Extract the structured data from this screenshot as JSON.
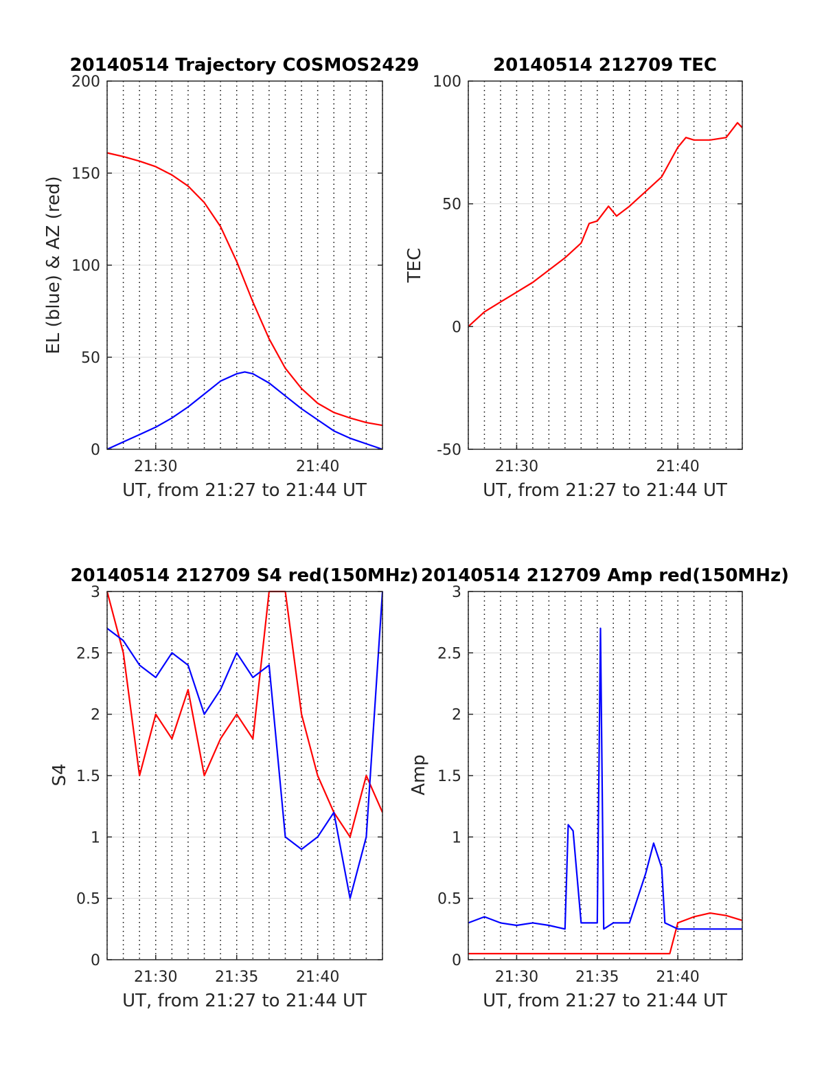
{
  "colors": {
    "red": "#ff0000",
    "blue": "#0000ff",
    "grid": "#d9d9d9",
    "axis": "#262626"
  },
  "chart_data": [
    {
      "type": "line",
      "title": "20140514 Trajectory COSMOS2429",
      "xlabel": "UT, from 21:27 to 21:44 UT",
      "ylabel": "EL (blue) & AZ (red)",
      "x_range_minutes": [
        "21:27",
        "21:44"
      ],
      "ylim": [
        0,
        200
      ],
      "yticks": [
        "0",
        "50",
        "100",
        "150",
        "200"
      ],
      "xticks": [
        {
          "t": "21:30",
          "label": "21:30"
        },
        {
          "t": "21:40",
          "label": "21:40"
        }
      ],
      "minor_grid": "dotted vertical every minute",
      "grid": true,
      "series": [
        {
          "color": "red",
          "x": [
            "21:27",
            "21:28",
            "21:29",
            "21:30",
            "21:31",
            "21:32",
            "21:33",
            "21:34",
            "21:35",
            "21:35.5",
            "21:36",
            "21:37",
            "21:38",
            "21:39",
            "21:40",
            "21:41",
            "21:42",
            "21:43",
            "21:44"
          ],
          "y": [
            161,
            159,
            156.5,
            153.5,
            149,
            143,
            134,
            121,
            102,
            91,
            80,
            60,
            44,
            33,
            25,
            20,
            17,
            14.5,
            13
          ]
        },
        {
          "color": "blue",
          "x": [
            "21:27",
            "21:28",
            "21:29",
            "21:30",
            "21:31",
            "21:32",
            "21:33",
            "21:34",
            "21:35",
            "21:35.5",
            "21:36",
            "21:37",
            "21:38",
            "21:39",
            "21:40",
            "21:41",
            "21:42",
            "21:43",
            "21:44"
          ],
          "y": [
            0,
            4,
            8,
            12,
            17,
            23,
            30,
            37,
            41,
            42,
            41,
            36,
            29,
            22,
            16,
            10,
            6,
            3,
            0
          ]
        }
      ]
    },
    {
      "type": "line",
      "title": "20140514 212709 TEC",
      "xlabel": "UT, from 21:27 to 21:44 UT",
      "ylabel": "TEC",
      "x_range_minutes": [
        "21:27",
        "21:44"
      ],
      "ylim": [
        -50,
        100
      ],
      "yticks": [
        "-50",
        "0",
        "50",
        "100"
      ],
      "xticks": [
        {
          "t": "21:30",
          "label": "21:30"
        },
        {
          "t": "21:40",
          "label": "21:40"
        }
      ],
      "minor_grid": "dotted vertical every minute",
      "grid": true,
      "series": [
        {
          "color": "red",
          "x": [
            "21:27",
            "21:28",
            "21:29",
            "21:30",
            "21:31",
            "21:32",
            "21:33",
            "21:34",
            "21:34.5",
            "21:35",
            "21:35.7",
            "21:36.2",
            "21:37",
            "21:38",
            "21:39",
            "21:40",
            "21:40.5",
            "21:41",
            "21:42",
            "21:43",
            "21:43.7",
            "21:44"
          ],
          "y": [
            0,
            6,
            10,
            14,
            18,
            23,
            28,
            34,
            42,
            43,
            49,
            45,
            49,
            55,
            61,
            73,
            77,
            76,
            76,
            77,
            83,
            81
          ]
        }
      ]
    },
    {
      "type": "line",
      "title": "20140514 212709 S4 red(150MHz)",
      "xlabel": "UT, from 21:27 to 21:44 UT",
      "ylabel": "S4",
      "x_range_minutes": [
        "21:27",
        "21:44"
      ],
      "ylim": [
        0,
        3
      ],
      "yticks": [
        "0",
        "0.5",
        "1",
        "1.5",
        "2",
        "2.5",
        "3"
      ],
      "xticks": [
        {
          "t": "21:30",
          "label": "21:30"
        },
        {
          "t": "21:35",
          "label": "21:35"
        },
        {
          "t": "21:40",
          "label": "21:40"
        }
      ],
      "minor_grid": "dotted vertical every minute",
      "grid": true,
      "series": [
        {
          "color": "red",
          "x": [
            "21:27",
            "21:28",
            "21:29",
            "21:30",
            "21:31",
            "21:32",
            "21:33",
            "21:34",
            "21:35",
            "21:36",
            "21:37",
            "21:38",
            "21:39",
            "21:40",
            "21:41",
            "21:42",
            "21:43",
            "21:44"
          ],
          "y": [
            3,
            2.5,
            1.5,
            2.0,
            1.8,
            2.2,
            1.5,
            1.8,
            2.0,
            1.8,
            3,
            3,
            2.0,
            1.5,
            1.2,
            1.0,
            1.5,
            1.2
          ]
        },
        {
          "color": "blue",
          "x": [
            "21:27",
            "21:28",
            "21:29",
            "21:30",
            "21:31",
            "21:32",
            "21:33",
            "21:34",
            "21:35",
            "21:36",
            "21:37",
            "21:38",
            "21:39",
            "21:40",
            "21:41",
            "21:42",
            "21:43",
            "21:44"
          ],
          "y": [
            2.7,
            2.6,
            2.4,
            2.3,
            2.5,
            2.4,
            2.0,
            2.2,
            2.5,
            2.3,
            2.4,
            1.0,
            0.9,
            1.0,
            1.2,
            0.5,
            1.0,
            3
          ]
        }
      ]
    },
    {
      "type": "line",
      "title": "20140514 212709 Amp red(150MHz)",
      "xlabel": "UT, from 21:27 to 21:44 UT",
      "ylabel": "Amp",
      "x_range_minutes": [
        "21:27",
        "21:44"
      ],
      "ylim": [
        0,
        3
      ],
      "yticks": [
        "0",
        "0.5",
        "1",
        "1.5",
        "2",
        "2.5",
        "3"
      ],
      "xticks": [
        {
          "t": "21:30",
          "label": "21:30"
        },
        {
          "t": "21:35",
          "label": "21:35"
        },
        {
          "t": "21:40",
          "label": "21:40"
        }
      ],
      "minor_grid": "dotted vertical every minute",
      "grid": true,
      "series": [
        {
          "color": "red",
          "x": [
            "21:27",
            "21:30",
            "21:33",
            "21:33.3",
            "21:35",
            "21:38",
            "21:39.5",
            "21:40",
            "21:41",
            "21:42",
            "21:43",
            "21:44"
          ],
          "y": [
            0.05,
            0.05,
            0.05,
            0.05,
            0.05,
            0.05,
            0.05,
            0.3,
            0.35,
            0.38,
            0.36,
            0.32
          ]
        },
        {
          "color": "blue",
          "x": [
            "21:27",
            "21:28",
            "21:29",
            "21:30",
            "21:31",
            "21:32",
            "21:33",
            "21:33.2",
            "21:33.5",
            "21:34",
            "21:35",
            "21:35.2",
            "21:35.4",
            "21:36",
            "21:37",
            "21:37.5",
            "21:38",
            "21:38.5",
            "21:39",
            "21:39.2",
            "21:40",
            "21:41",
            "21:42",
            "21:43",
            "21:44"
          ],
          "y": [
            0.3,
            0.35,
            0.3,
            0.28,
            0.3,
            0.28,
            0.25,
            1.1,
            1.05,
            0.3,
            0.3,
            2.7,
            0.25,
            0.3,
            0.3,
            0.5,
            0.7,
            0.95,
            0.75,
            0.3,
            0.25,
            0.25,
            0.25,
            0.25,
            0.25
          ]
        }
      ]
    }
  ]
}
